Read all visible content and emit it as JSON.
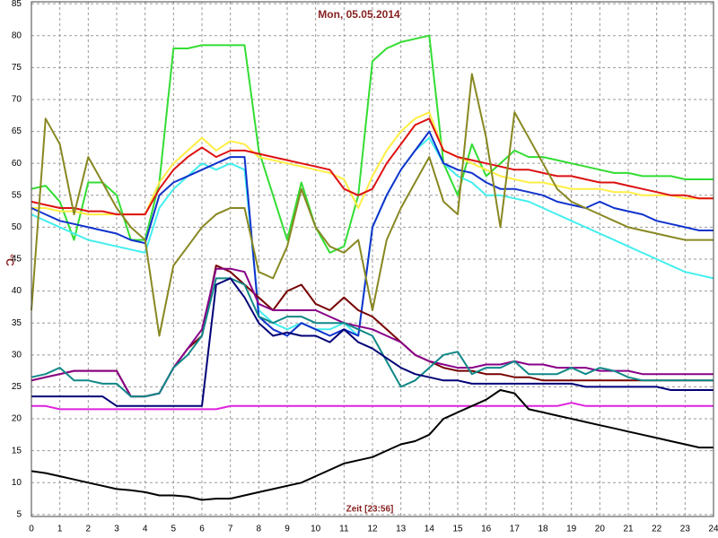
{
  "chart_data": {
    "type": "line",
    "title": "Mon, 05.05.2014",
    "x_label": "Zeit [23:56]",
    "y_label": "°C",
    "xlim": [
      0,
      24
    ],
    "ylim": [
      4.7,
      85.3
    ],
    "grid": true,
    "xticks": [
      0,
      1,
      2,
      3,
      4,
      5,
      6,
      7,
      8,
      9,
      10,
      11,
      12,
      13,
      14,
      15,
      16,
      17,
      18,
      19,
      20,
      21,
      22,
      23,
      24
    ],
    "yticks": [
      5,
      10,
      15,
      20,
      25,
      30,
      35,
      40,
      45,
      50,
      55,
      60,
      65,
      70,
      75,
      80,
      85
    ],
    "x": [
      0,
      0.5,
      1,
      1.5,
      2,
      2.5,
      3,
      3.5,
      4,
      4.5,
      5,
      5.5,
      6,
      6.5,
      7,
      7.5,
      8,
      8.5,
      9,
      9.5,
      10,
      10.5,
      11,
      11.5,
      12,
      12.5,
      13,
      13.5,
      14,
      14.5,
      15,
      15.5,
      16,
      16.5,
      17,
      17.5,
      18,
      18.5,
      19,
      19.5,
      20,
      20.5,
      21,
      21.5,
      22,
      22.5,
      23,
      23.5,
      24
    ],
    "series": [
      {
        "color": "#33dd33",
        "values": [
          56,
          56.5,
          54,
          48,
          57,
          57,
          55,
          48,
          48,
          57,
          78,
          78,
          78.5,
          78.5,
          78.5,
          78.5,
          62,
          55,
          48,
          57,
          50,
          46,
          47,
          55,
          76,
          78,
          79,
          79.5,
          80,
          60,
          55,
          63,
          58,
          60,
          62,
          61,
          61,
          60.5,
          60,
          59.5,
          59,
          58.5,
          58.5,
          58,
          58,
          58,
          57.5,
          57.5,
          57.5
        ]
      },
      {
        "color": "#ffee44",
        "values": [
          53,
          53,
          52.5,
          52.5,
          52,
          52,
          52,
          52,
          52,
          57,
          60,
          62,
          64,
          62,
          63.5,
          63,
          61,
          60.5,
          60,
          59.5,
          59,
          58.5,
          57.5,
          53,
          58,
          62,
          65,
          67,
          68,
          62,
          61,
          60,
          59,
          58,
          57.5,
          57,
          57,
          56.5,
          56,
          56,
          56,
          55.5,
          55.5,
          55,
          55,
          55,
          54.5,
          54.5,
          54.5
        ]
      },
      {
        "color": "#dd1111",
        "values": [
          54,
          53.5,
          53,
          53,
          52.5,
          52.5,
          52,
          52,
          52,
          56,
          59,
          61,
          62.5,
          61,
          62,
          62,
          61.5,
          61,
          60.5,
          60,
          59.5,
          59,
          56,
          55,
          56,
          60,
          63,
          66,
          67,
          62,
          61,
          60.5,
          60,
          59.5,
          59,
          59,
          58.5,
          58,
          58,
          57.5,
          57,
          57,
          56.5,
          56,
          55.5,
          55,
          55,
          54.5,
          54.5
        ]
      },
      {
        "color": "#44eeee",
        "values": [
          52,
          51,
          50,
          49,
          48,
          47.5,
          47,
          46.5,
          46,
          53,
          56,
          58,
          60,
          59,
          60,
          59,
          37,
          35,
          34,
          35,
          34,
          34,
          35,
          33,
          50,
          55,
          59,
          62,
          64,
          60,
          58,
          57,
          55,
          55,
          54.5,
          54,
          53,
          52,
          51,
          50,
          49,
          48,
          47,
          46,
          45,
          44,
          43,
          42.5,
          42
        ]
      },
      {
        "color": "#1133cc",
        "values": [
          53,
          52,
          51,
          50.5,
          50,
          49.5,
          49,
          48,
          47.5,
          55,
          57,
          58,
          59,
          60,
          61,
          61,
          36,
          34,
          33,
          35,
          34,
          33,
          34,
          33,
          50,
          55,
          59,
          62,
          65,
          60,
          59,
          58.5,
          57,
          56,
          56,
          55.5,
          55,
          54,
          53.5,
          53,
          54,
          53,
          52.5,
          52,
          51,
          50.5,
          50,
          49.5,
          49.5
        ]
      },
      {
        "color": "#888822",
        "values": [
          37,
          67,
          63,
          52,
          61,
          57,
          53,
          50,
          48,
          33,
          44,
          47,
          50,
          52,
          53,
          53,
          43,
          42,
          47,
          56,
          50,
          47,
          46,
          48,
          37,
          48,
          53,
          57,
          61,
          54,
          52,
          74,
          64,
          50,
          68,
          64,
          60,
          56,
          54,
          53,
          52,
          51,
          50,
          49.5,
          49,
          48.5,
          48,
          48,
          48
        ]
      },
      {
        "color": "#770000",
        "values": [
          26,
          26.5,
          27,
          27.5,
          27.5,
          27.5,
          27.5,
          23.5,
          23.5,
          24,
          28,
          31,
          33,
          44,
          43,
          41,
          39,
          37,
          40,
          41,
          38,
          37,
          39,
          37,
          36,
          34,
          32,
          30,
          29,
          28,
          27.5,
          27.5,
          27,
          27,
          26.5,
          26.5,
          26,
          26,
          26,
          26,
          26,
          26,
          26,
          26,
          26,
          26,
          26,
          26,
          26
        ]
      },
      {
        "color": "#880088",
        "values": [
          26,
          26.5,
          27,
          27.5,
          27.5,
          27.5,
          27.5,
          23.5,
          23.5,
          24,
          28,
          31,
          34,
          43.5,
          43.5,
          43,
          38,
          37,
          37,
          37,
          37,
          36,
          35,
          34.5,
          34,
          33,
          32,
          30,
          29,
          28.5,
          28,
          28,
          28.5,
          28.5,
          29,
          28.5,
          28.5,
          28,
          28,
          28,
          27.5,
          27.5,
          27.5,
          27,
          27,
          27,
          27,
          27,
          27
        ]
      },
      {
        "color": "#118888",
        "values": [
          26.5,
          27,
          28,
          26,
          26,
          25.5,
          25.5,
          23.5,
          23.5,
          24,
          28,
          30,
          33,
          42,
          42,
          41,
          36,
          35,
          36,
          36,
          35,
          35,
          35,
          34,
          33,
          29,
          25,
          26,
          28,
          30,
          30.5,
          27,
          28,
          28,
          29,
          27,
          27,
          27,
          28,
          27,
          28,
          27.5,
          26.5,
          26,
          26,
          26,
          26,
          26,
          26
        ]
      },
      {
        "color": "#000077",
        "values": [
          23.5,
          23.5,
          23.5,
          23.5,
          23.5,
          23.5,
          22,
          22,
          22,
          22,
          22,
          22,
          22,
          41,
          42,
          39,
          35,
          33,
          33.5,
          33,
          33,
          32,
          34,
          32,
          31,
          29.5,
          28,
          27,
          26.5,
          26,
          26,
          25.5,
          25.5,
          25.5,
          25.5,
          25.5,
          25.5,
          25.5,
          25.5,
          25,
          25,
          25,
          25,
          25,
          25,
          24.5,
          24.5,
          24.5,
          24.5
        ]
      },
      {
        "color": "#dd22dd",
        "values": [
          22,
          22,
          21.5,
          21.5,
          21.5,
          21.5,
          21.5,
          21.5,
          21.5,
          21.5,
          21.5,
          21.5,
          21.5,
          21.5,
          22,
          22,
          22,
          22,
          22,
          22,
          22,
          22,
          22,
          22,
          22,
          22,
          22,
          22,
          22,
          22,
          22,
          22,
          22,
          22,
          22,
          22,
          22,
          22,
          22.5,
          22,
          22,
          22,
          22,
          22,
          22,
          22,
          22,
          22,
          22
        ]
      },
      {
        "color": "#000000",
        "values": [
          11.8,
          11.5,
          11,
          10.5,
          10,
          9.5,
          9,
          8.8,
          8.5,
          8,
          8,
          7.8,
          7.3,
          7.5,
          7.5,
          8,
          8.5,
          9,
          9.5,
          10,
          11,
          12,
          13,
          13.5,
          14,
          15,
          16,
          16.5,
          17.5,
          20,
          21,
          22,
          23,
          24.5,
          24,
          21.5,
          21,
          20.5,
          20,
          19.5,
          19,
          18.5,
          18,
          17.5,
          17,
          16.5,
          16,
          15.5,
          15.5
        ]
      }
    ]
  }
}
